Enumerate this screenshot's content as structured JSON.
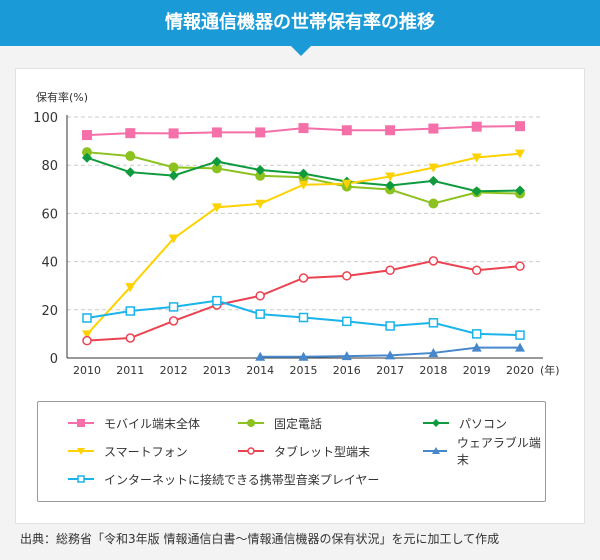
{
  "title": "情報通信機器の世帯保有率の推移",
  "source": "出典：総務省「令和3年版 情報通信白書〜情報通信機器の保有状況」を元に加工して作成",
  "chart_data": {
    "type": "line",
    "ylabel": "保有率(%)",
    "xunit": "(年)",
    "ylim": [
      0,
      100
    ],
    "yticks": [
      0,
      20,
      40,
      60,
      80,
      100
    ],
    "grid": true,
    "legend_position": "bottom",
    "x": [
      "2010",
      "2011",
      "2012",
      "2013",
      "2014",
      "2015",
      "2016",
      "2017",
      "2018",
      "2019",
      "2020"
    ],
    "series": [
      {
        "name": "モバイル端末全体",
        "color": "#f56fa8",
        "marker": "square",
        "values": [
          92.5,
          93.3,
          93.2,
          93.6,
          93.6,
          95.4,
          94.5,
          94.5,
          95.2,
          96.0,
          96.2
        ]
      },
      {
        "name": "固定電話",
        "color": "#8cc21f",
        "marker": "circle",
        "values": [
          85.4,
          83.8,
          79.1,
          78.7,
          75.6,
          75.0,
          71.1,
          69.9,
          64.1,
          68.7,
          68.2
        ]
      },
      {
        "name": "パソコン",
        "color": "#0f9a3e",
        "marker": "diamond",
        "values": [
          83.1,
          77.1,
          75.7,
          81.5,
          78.0,
          76.5,
          73.2,
          71.6,
          73.5,
          69.2,
          69.5
        ]
      },
      {
        "name": "スマートフォン",
        "color": "#fdd200",
        "marker": "triangle-down",
        "values": [
          9.8,
          29.4,
          49.6,
          62.5,
          64.0,
          71.9,
          72.3,
          75.3,
          79.0,
          83.2,
          84.8
        ]
      },
      {
        "name": "タブレット型端末",
        "color": "#eb4351",
        "marker": "circle-open",
        "values": [
          7.2,
          8.3,
          15.4,
          22.0,
          25.8,
          33.2,
          34.1,
          36.4,
          40.3,
          36.4,
          38.1
        ]
      },
      {
        "name": "ウェアラブル端末",
        "color": "#4787cc",
        "marker": "triangle",
        "values": [
          null,
          null,
          null,
          null,
          0.5,
          0.5,
          0.8,
          1.1,
          2.1,
          4.3,
          4.3
        ]
      },
      {
        "name": "インターネットに接続できる携帯型音楽プレイヤー",
        "color": "#19b4ea",
        "marker": "square-open",
        "values": [
          16.6,
          19.5,
          21.2,
          23.8,
          18.2,
          16.8,
          15.2,
          13.3,
          14.6,
          10.0,
          9.5
        ]
      }
    ]
  }
}
